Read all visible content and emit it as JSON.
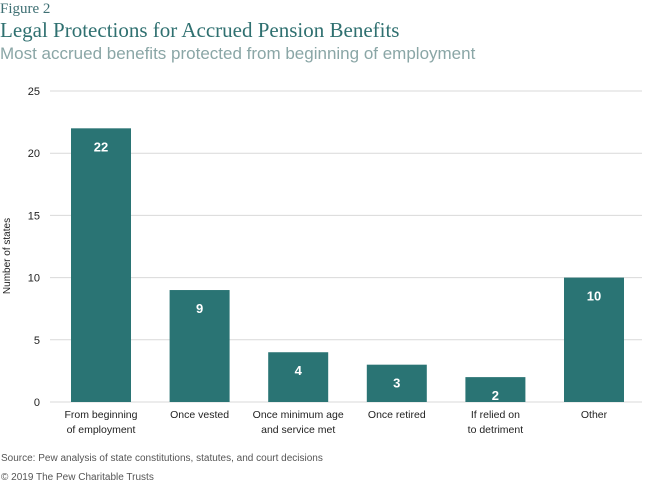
{
  "figure_label": "Figure 2",
  "title": "Legal Protections for Accrued Pension Benefits",
  "subtitle": "Most accrued benefits protected from beginning of employment",
  "source": "Source: Pew analysis of state constitutions, statutes, and court decisions",
  "copyright": "© 2019 The Pew Charitable Trusts",
  "colors": {
    "bar": "#2a7474",
    "bar_label": "#ffffff",
    "grid": "#d9d9d9",
    "axis_text": "#222222"
  },
  "chart_data": {
    "type": "bar",
    "title": "Legal Protections for Accrued Pension Benefits",
    "xlabel": "",
    "ylabel": "Number of states",
    "ylim": [
      0,
      25
    ],
    "yticks": [
      0,
      5,
      10,
      15,
      20,
      25
    ],
    "grid": true,
    "categories": [
      [
        "From beginning",
        "of employment"
      ],
      [
        "Once vested"
      ],
      [
        "Once minimum age",
        "and service met"
      ],
      [
        "Once retired"
      ],
      [
        "If relied on",
        "to detriment"
      ],
      [
        "Other"
      ]
    ],
    "values": [
      22,
      9,
      4,
      3,
      2,
      10
    ],
    "data_labels": [
      "22",
      "9",
      "4",
      "3",
      "2",
      "10"
    ]
  }
}
